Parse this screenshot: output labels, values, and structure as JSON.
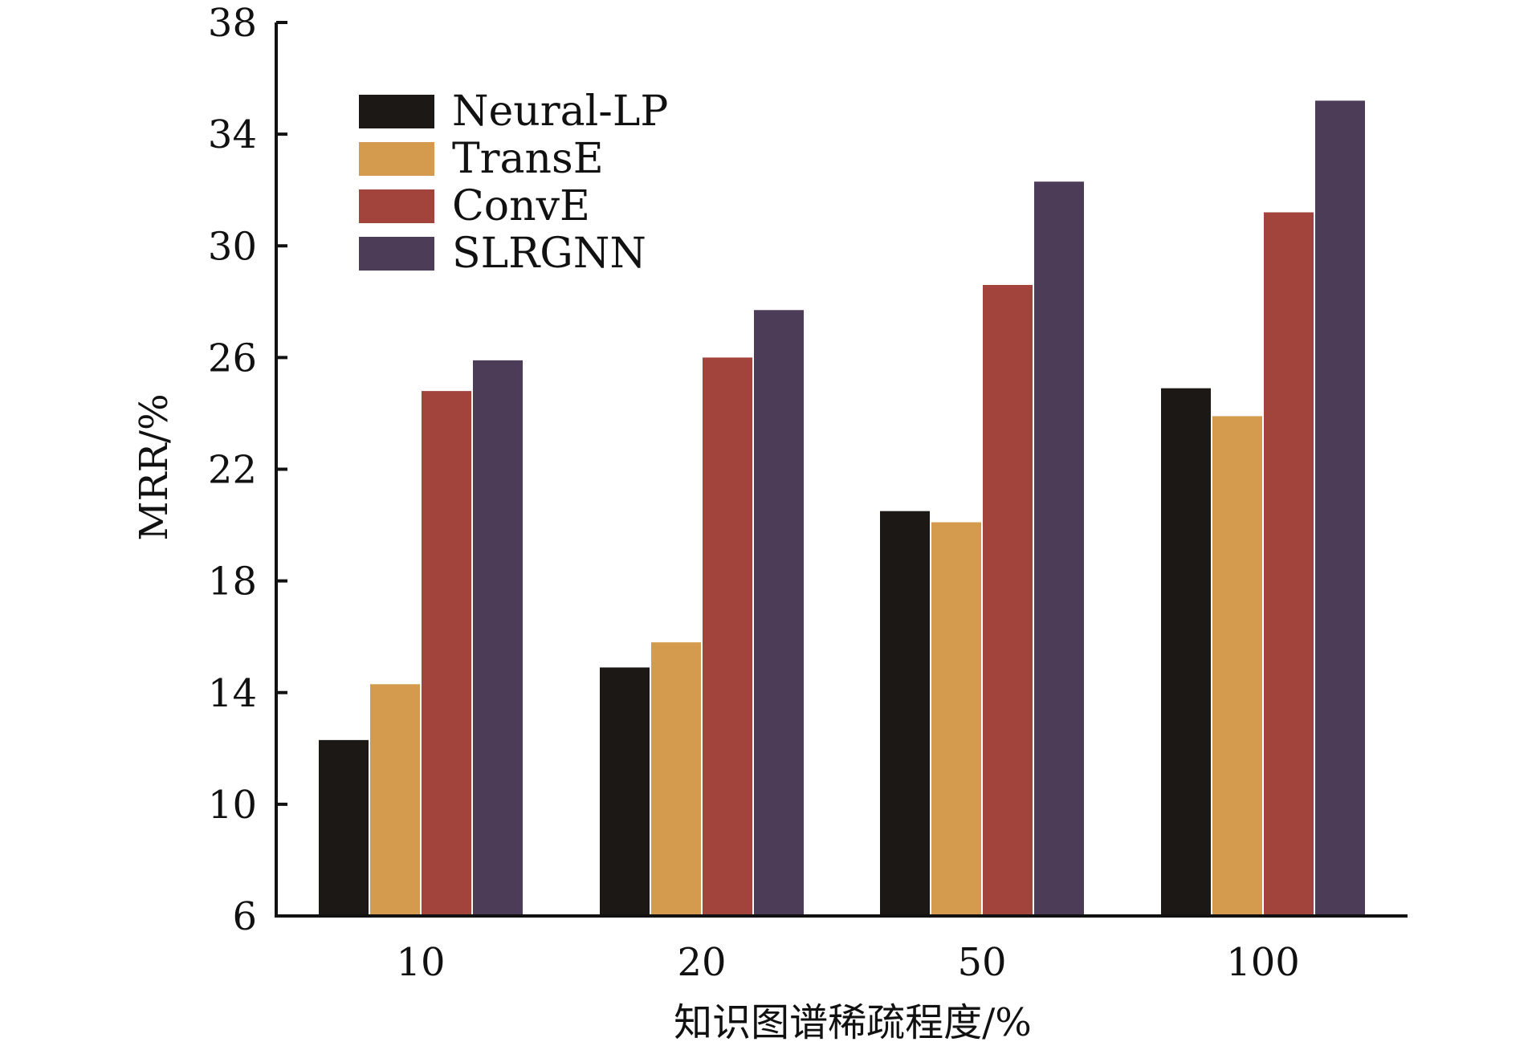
{
  "chart_data": {
    "type": "bar",
    "categories": [
      "10",
      "20",
      "50",
      "100"
    ],
    "series": [
      {
        "name": "Neural-LP",
        "color": "#1c1815",
        "values": [
          12.3,
          14.9,
          20.5,
          24.9
        ]
      },
      {
        "name": "TransE",
        "color": "#d49a4e",
        "values": [
          14.3,
          15.8,
          20.1,
          23.9
        ]
      },
      {
        "name": "ConvE",
        "color": "#a2443c",
        "values": [
          24.8,
          26.0,
          28.6,
          31.2
        ]
      },
      {
        "name": "SLRGNN",
        "color": "#4d3c58",
        "values": [
          25.9,
          27.7,
          32.3,
          35.2
        ]
      }
    ],
    "xlabel": "知识图谱稀疏程度/%",
    "ylabel": "MRR/%",
    "ylim": [
      6,
      38
    ],
    "yticks": [
      "6",
      "10",
      "14",
      "18",
      "22",
      "26",
      "30",
      "34",
      "38"
    ],
    "grid": false,
    "legend_position": "top-left"
  }
}
